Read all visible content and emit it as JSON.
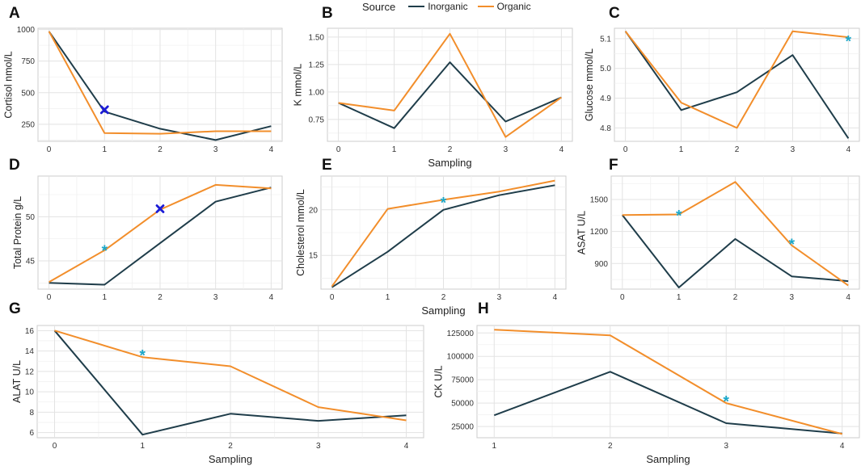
{
  "legend": {
    "title": "Source",
    "inorganic": "Inorganic",
    "organic": "Organic",
    "colors": {
      "inorganic": "#1f3d4a",
      "organic": "#f28e2b"
    }
  },
  "marker_colors": {
    "asterisk": "#1aa7c9",
    "cross": "#1c1cd6"
  },
  "chart_data": [
    {
      "id": "A",
      "type": "line",
      "title": "A",
      "xlabel": "",
      "ylabel": "Cortisol nmol/L",
      "x": [
        0,
        1,
        2,
        3,
        4
      ],
      "xlim": [
        0,
        4
      ],
      "ylim": [
        115,
        1010
      ],
      "xticks": [
        "0",
        "1",
        "2",
        "3",
        "4"
      ],
      "yticks": [
        250,
        500,
        750,
        1000
      ],
      "ytick_labels": [
        "250",
        "500",
        "750",
        "1000"
      ],
      "series": [
        {
          "name": "Inorganic",
          "values": [
            985,
            350,
            215,
            125,
            235
          ]
        },
        {
          "name": "Organic",
          "values": [
            985,
            180,
            175,
            195,
            195
          ]
        }
      ],
      "markers": [
        {
          "type": "cross",
          "x": 1,
          "y": 365
        }
      ]
    },
    {
      "id": "B",
      "type": "line",
      "title": "B",
      "xlabel": "Sampling",
      "ylabel": "K mmol/L",
      "x": [
        0,
        1,
        2,
        3,
        4
      ],
      "xlim": [
        0,
        4
      ],
      "ylim": [
        0.55,
        1.58
      ],
      "xticks": [
        "0",
        "1",
        "2",
        "3",
        "4"
      ],
      "yticks": [
        0.75,
        1.0,
        1.25,
        1.5
      ],
      "ytick_labels": [
        "0.75",
        "1.00",
        "1.25",
        "1.50"
      ],
      "series": [
        {
          "name": "Inorganic",
          "values": [
            0.9,
            0.67,
            1.27,
            0.73,
            0.95
          ]
        },
        {
          "name": "Organic",
          "values": [
            0.9,
            0.83,
            1.53,
            0.59,
            0.95
          ]
        }
      ],
      "markers": []
    },
    {
      "id": "C",
      "type": "line",
      "title": "C",
      "xlabel": "",
      "ylabel": "Glucose mmol/L",
      "x": [
        0,
        1,
        2,
        3,
        4
      ],
      "xlim": [
        0,
        4
      ],
      "ylim": [
        4.755,
        5.135
      ],
      "xticks": [
        "0",
        "1",
        "2",
        "3",
        "4"
      ],
      "yticks": [
        4.8,
        4.9,
        5.0,
        5.1
      ],
      "ytick_labels": [
        "4.8",
        "4.9",
        "5.0",
        "5.1"
      ],
      "series": [
        {
          "name": "Inorganic",
          "values": [
            5.125,
            4.86,
            4.92,
            5.045,
            4.765
          ]
        },
        {
          "name": "Organic",
          "values": [
            5.125,
            4.885,
            4.8,
            5.125,
            5.105
          ]
        }
      ],
      "markers": [
        {
          "type": "asterisk",
          "x": 4,
          "y": 5.095
        }
      ]
    },
    {
      "id": "D",
      "type": "line",
      "title": "D",
      "xlabel": "",
      "ylabel": "Total Protein g/L",
      "x": [
        0,
        1,
        2,
        3,
        4
      ],
      "xlim": [
        0,
        4
      ],
      "ylim": [
        41.8,
        54.6
      ],
      "xticks": [
        "0",
        "1",
        "2",
        "3",
        "4"
      ],
      "yticks": [
        45,
        50
      ],
      "ytick_labels": [
        "45",
        "50"
      ],
      "series": [
        {
          "name": "Inorganic",
          "values": [
            42.5,
            42.3,
            47.0,
            51.7,
            53.3
          ]
        },
        {
          "name": "Organic",
          "values": [
            42.6,
            46.2,
            50.8,
            53.6,
            53.2
          ]
        }
      ],
      "markers": [
        {
          "type": "asterisk",
          "x": 1,
          "y": 46.3
        },
        {
          "type": "cross",
          "x": 2,
          "y": 50.9
        }
      ]
    },
    {
      "id": "E",
      "type": "line",
      "title": "E",
      "xlabel": "Sampling",
      "ylabel": "Cholesterol mmol/L",
      "x": [
        0,
        1,
        2,
        3,
        4
      ],
      "xlim": [
        0,
        4
      ],
      "ylim": [
        11.3,
        23.7
      ],
      "xticks": [
        "0",
        "1",
        "2",
        "3",
        "4"
      ],
      "yticks": [
        15,
        20
      ],
      "ytick_labels": [
        "15",
        "20"
      ],
      "series": [
        {
          "name": "Inorganic",
          "values": [
            11.5,
            15.4,
            20.0,
            21.6,
            22.7
          ]
        },
        {
          "name": "Organic",
          "values": [
            11.6,
            20.1,
            21.1,
            22.0,
            23.2
          ]
        }
      ],
      "markers": [
        {
          "type": "asterisk",
          "x": 2,
          "y": 20.9
        }
      ]
    },
    {
      "id": "F",
      "type": "line",
      "title": "F",
      "xlabel": "",
      "ylabel": "ASAT U/L",
      "x": [
        0,
        1,
        2,
        3,
        4
      ],
      "xlim": [
        0,
        4
      ],
      "ylim": [
        660,
        1720
      ],
      "xticks": [
        "0",
        "1",
        "2",
        "3",
        "4"
      ],
      "yticks": [
        900,
        1200,
        1500
      ],
      "ytick_labels": [
        "900",
        "1200",
        "1500"
      ],
      "series": [
        {
          "name": "Inorganic",
          "values": [
            1355,
            675,
            1130,
            780,
            735
          ]
        },
        {
          "name": "Organic",
          "values": [
            1355,
            1360,
            1665,
            1070,
            695
          ]
        }
      ],
      "markers": [
        {
          "type": "asterisk",
          "x": 1,
          "y": 1360
        },
        {
          "type": "asterisk",
          "x": 3,
          "y": 1090
        }
      ]
    },
    {
      "id": "G",
      "type": "line",
      "title": "G",
      "xlabel": "Sampling",
      "ylabel": "ALAT U/L",
      "x": [
        0,
        1,
        2,
        3,
        4
      ],
      "xlim": [
        0,
        4
      ],
      "ylim": [
        5.5,
        16.5
      ],
      "xticks": [
        "0",
        "1",
        "2",
        "3",
        "4"
      ],
      "yticks": [
        6,
        8,
        10,
        12,
        14,
        16
      ],
      "ytick_labels": [
        "6",
        "8",
        "10",
        "12",
        "14",
        "16"
      ],
      "series": [
        {
          "name": "Inorganic",
          "values": [
            16.0,
            5.8,
            7.85,
            7.15,
            7.7
          ]
        },
        {
          "name": "Organic",
          "values": [
            16.0,
            13.4,
            12.5,
            8.5,
            7.2
          ]
        }
      ],
      "markers": [
        {
          "type": "asterisk",
          "x": 1,
          "y": 13.7
        }
      ]
    },
    {
      "id": "H",
      "type": "line",
      "title": "H",
      "xlabel": "Sampling",
      "ylabel": "CK U/L",
      "x": [
        1,
        2,
        3,
        4
      ],
      "xlim": [
        1,
        4
      ],
      "ylim": [
        13000,
        133000
      ],
      "xticks": [
        "1",
        "2",
        "3",
        "4"
      ],
      "yticks": [
        25000,
        50000,
        75000,
        100000,
        125000
      ],
      "ytick_labels": [
        "25000",
        "50000",
        "75000",
        "100000",
        "125000"
      ],
      "series": [
        {
          "name": "Inorganic",
          "values": [
            37000,
            83500,
            28500,
            17500
          ]
        },
        {
          "name": "Organic",
          "values": [
            128500,
            122500,
            50000,
            17000
          ]
        }
      ],
      "markers": [
        {
          "type": "asterisk",
          "x": 3,
          "y": 53000
        }
      ]
    }
  ]
}
